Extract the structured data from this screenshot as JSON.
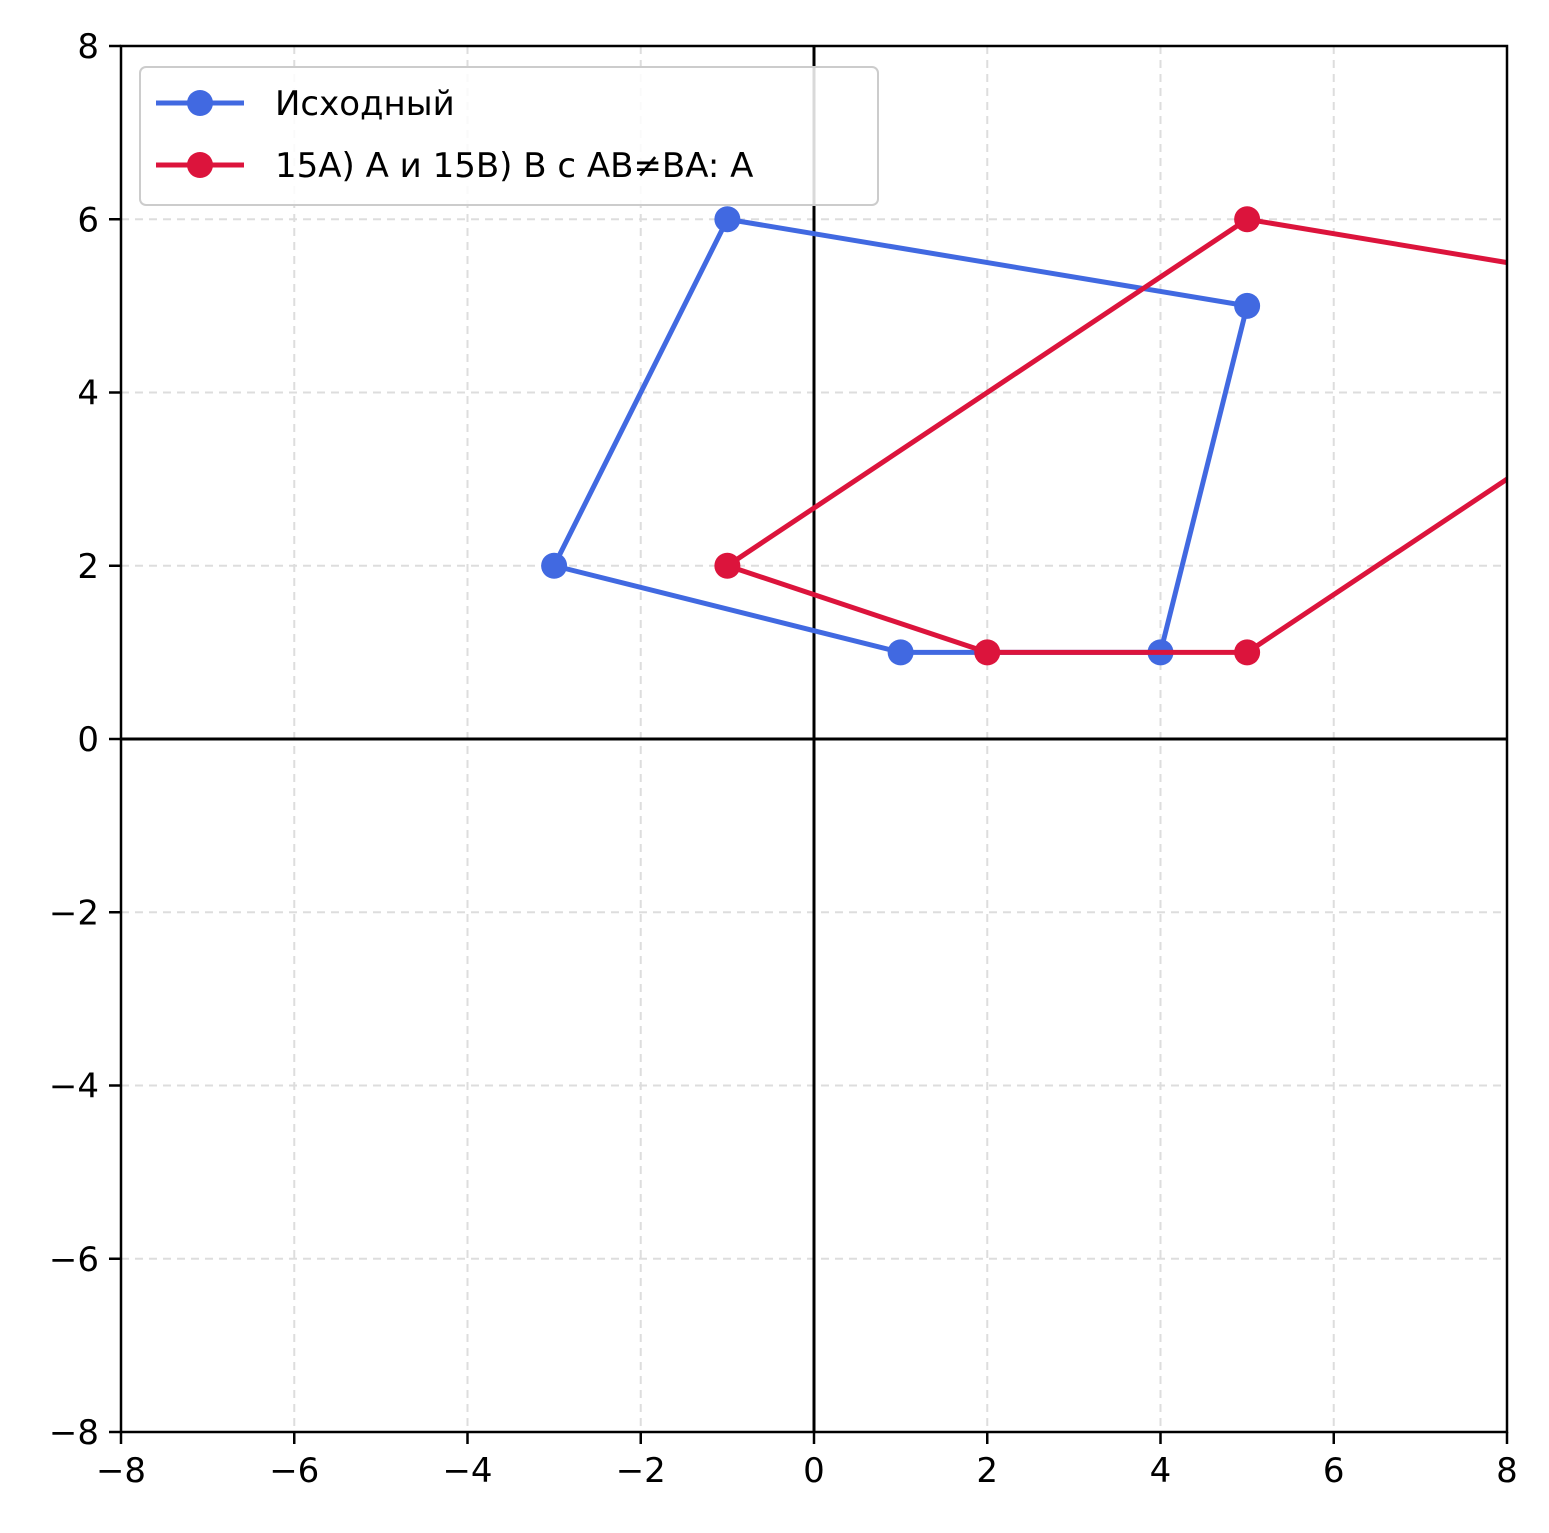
{
  "chart_data": {
    "type": "line",
    "title": "",
    "xlabel": "",
    "ylabel": "",
    "xlim": [
      -8,
      8
    ],
    "ylim": [
      -8,
      8
    ],
    "xticks": [
      -8,
      -6,
      -4,
      -2,
      0,
      2,
      4,
      6,
      8
    ],
    "yticks": [
      -8,
      -6,
      -4,
      -2,
      0,
      2,
      4,
      6,
      8
    ],
    "xtick_labels": [
      "−8",
      "−6",
      "−4",
      "−2",
      "0",
      "2",
      "4",
      "6",
      "8"
    ],
    "ytick_labels": [
      "−8",
      "−6",
      "−4",
      "−2",
      "0",
      "2",
      "4",
      "6",
      "8"
    ],
    "grid": true,
    "axes_lines_at_zero": true,
    "legend_position": "upper-left",
    "series": [
      {
        "name": "Исходный",
        "color": "#4169e1",
        "closed": true,
        "x": [
          1,
          4,
          5,
          -1,
          -3
        ],
        "y": [
          1,
          1,
          5,
          6,
          2
        ]
      },
      {
        "name": "15A) A и 15B) B с AB≠BA: A",
        "color": "#dc143c",
        "closed": true,
        "x": [
          2,
          5,
          11,
          5,
          -1
        ],
        "y": [
          1,
          1,
          5,
          6,
          2
        ]
      }
    ]
  }
}
